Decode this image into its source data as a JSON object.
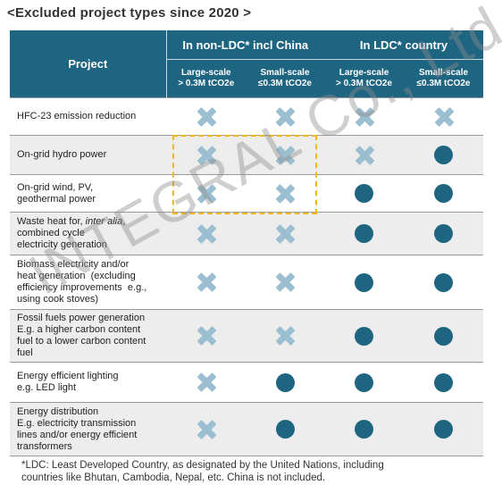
{
  "title": "<Excluded project types since 2020 >",
  "header": {
    "project": "Project",
    "groups": [
      "In non-LDC* incl China",
      "In LDC* country"
    ],
    "subs": [
      {
        "line1": "Large-scale",
        "line2": "> 0.3M tCO2e"
      },
      {
        "line1": "Small-scale",
        "line2": "≤0.3M tCO2e"
      },
      {
        "line1": "Large-scale",
        "line2": "> 0.3M tCO2e"
      },
      {
        "line1": "Small-scale",
        "line2": "≤0.3M tCO2e"
      }
    ]
  },
  "rows": [
    {
      "label_html": "HFC-23 emission reduction",
      "marks": [
        "x",
        "x",
        "x",
        "x"
      ],
      "height": 42
    },
    {
      "label_html": "On-grid hydro power",
      "marks": [
        "x",
        "x",
        "x",
        "o"
      ],
      "height": 44
    },
    {
      "label_html": "On-grid wind, PV,<br>geothermal power",
      "marks": [
        "x",
        "x",
        "o",
        "o"
      ],
      "height": 42
    },
    {
      "label_html": "Waste heat for, <i>inter alia</i>,<br>combined cycle<br>electricity generation",
      "marks": [
        "x",
        "x",
        "o",
        "o"
      ],
      "height": 48
    },
    {
      "label_html": "Biomass electricity and/or<br>heat generation&nbsp; (excluding<br>efficiency improvements&nbsp; e.g.,<br>using cook stoves)",
      "marks": [
        "x",
        "x",
        "o",
        "o"
      ],
      "height": 61
    },
    {
      "label_html": "Fossil fuels power generation<br>E.g. a higher carbon content<br>fuel to a lower carbon content<br>fuel",
      "marks": [
        "x",
        "x",
        "o",
        "o"
      ],
      "height": 59
    },
    {
      "label_html": "Energy efficient lighting<br>e.g. LED light",
      "marks": [
        "x",
        "o",
        "o",
        "o"
      ],
      "height": 45
    },
    {
      "label_html": "Energy distribution<br>E.g. electricity transmission<br>lines and/or energy efficient<br>transformers",
      "marks": [
        "x",
        "o",
        "o",
        "o"
      ],
      "height": 60
    }
  ],
  "watermark": "INTEGRAL Co., Ltd",
  "footnote_line1": "*LDC: Least Developed Country, as designated by the United Nations, including",
  "footnote_line2": "countries like Bhutan, Cambodia, Nepal, etc. China is not included."
}
